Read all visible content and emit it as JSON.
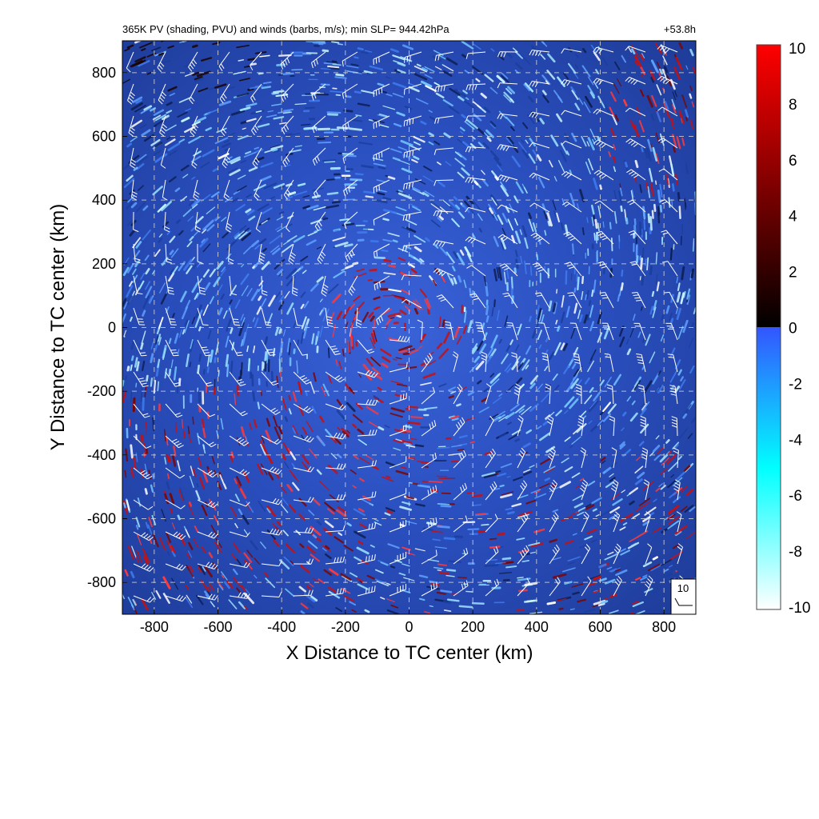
{
  "chart_data": {
    "type": "heatmap",
    "title": "365K PV (shading, PVU) and winds (barbs, m/s); min SLP= 944.42hPa",
    "time_label": "+53.8h",
    "xlabel": "X Distance to TC center (km)",
    "ylabel": "Y Distance to TC center (km)",
    "xlim": [
      -900,
      900
    ],
    "ylim": [
      -900,
      900
    ],
    "xticks": [
      -800,
      -600,
      -400,
      -200,
      0,
      200,
      400,
      600,
      800
    ],
    "yticks": [
      -800,
      -600,
      -400,
      -200,
      0,
      200,
      400,
      600,
      800
    ],
    "grid": true,
    "colorbar": {
      "min": -10,
      "max": 10,
      "ticks": [
        10,
        8,
        6,
        4,
        2,
        0,
        -2,
        -4,
        -6,
        -8,
        -10
      ],
      "colors": [
        "#ffffff",
        "#00ffff",
        "#3355ff",
        "#000000",
        "#ff0000"
      ]
    },
    "barb_reference": {
      "label": "10"
    }
  }
}
